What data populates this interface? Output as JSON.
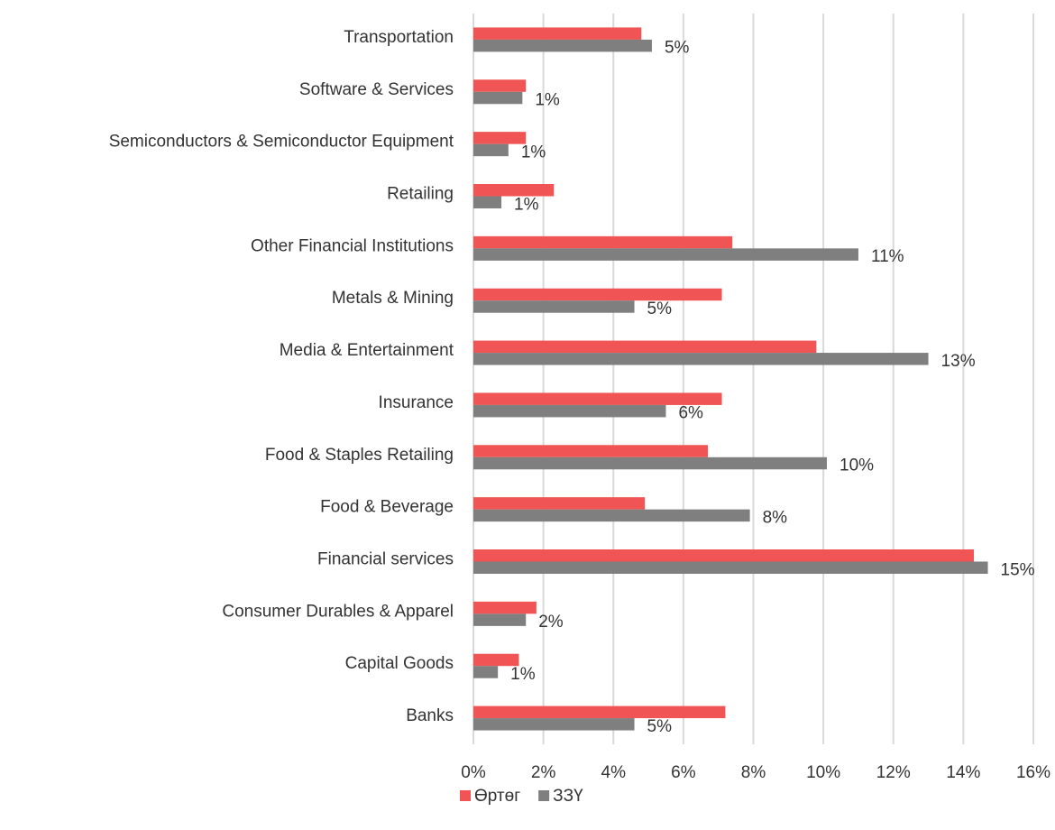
{
  "chart_data": {
    "type": "barh",
    "categories": [
      "Transportation",
      "Software & Services",
      "Semiconductors & Semiconductor Equipment",
      "Retailing",
      "Other Financial Institutions",
      "Metals & Mining",
      "Media & Entertainment",
      "Insurance",
      "Food & Staples Retailing",
      "Food & Beverage",
      "Financial services",
      "Consumer Durables & Apparel",
      "Capital Goods",
      "Banks"
    ],
    "series": [
      {
        "name": "Өртөг",
        "color": "#f05454",
        "values": [
          4.8,
          1.5,
          1.5,
          2.3,
          7.4,
          7.1,
          9.8,
          7.1,
          6.7,
          4.9,
          14.3,
          1.8,
          1.3,
          7.2
        ]
      },
      {
        "name": "ЗЗҮ",
        "color": "#7f7f7f",
        "values": [
          5.1,
          1.4,
          1.0,
          0.8,
          11.0,
          4.6,
          13.0,
          5.5,
          10.1,
          7.9,
          14.7,
          1.5,
          0.7,
          4.6
        ],
        "value_labels": [
          "5%",
          "1%",
          "1%",
          "1%",
          "11%",
          "5%",
          "13%",
          "6%",
          "10%",
          "8%",
          "15%",
          "2%",
          "1%",
          "5%"
        ]
      }
    ],
    "xlim": [
      0,
      16
    ],
    "xticks": [
      {
        "value": 0,
        "label": "0%"
      },
      {
        "value": 2,
        "label": "2%"
      },
      {
        "value": 4,
        "label": "4%"
      },
      {
        "value": 6,
        "label": "6%"
      },
      {
        "value": 8,
        "label": "8%"
      },
      {
        "value": 10,
        "label": "10%"
      },
      {
        "value": 12,
        "label": "12%"
      },
      {
        "value": 14,
        "label": "14%"
      },
      {
        "value": 16,
        "label": "16%"
      }
    ],
    "grid": true,
    "legend": "bottom"
  }
}
